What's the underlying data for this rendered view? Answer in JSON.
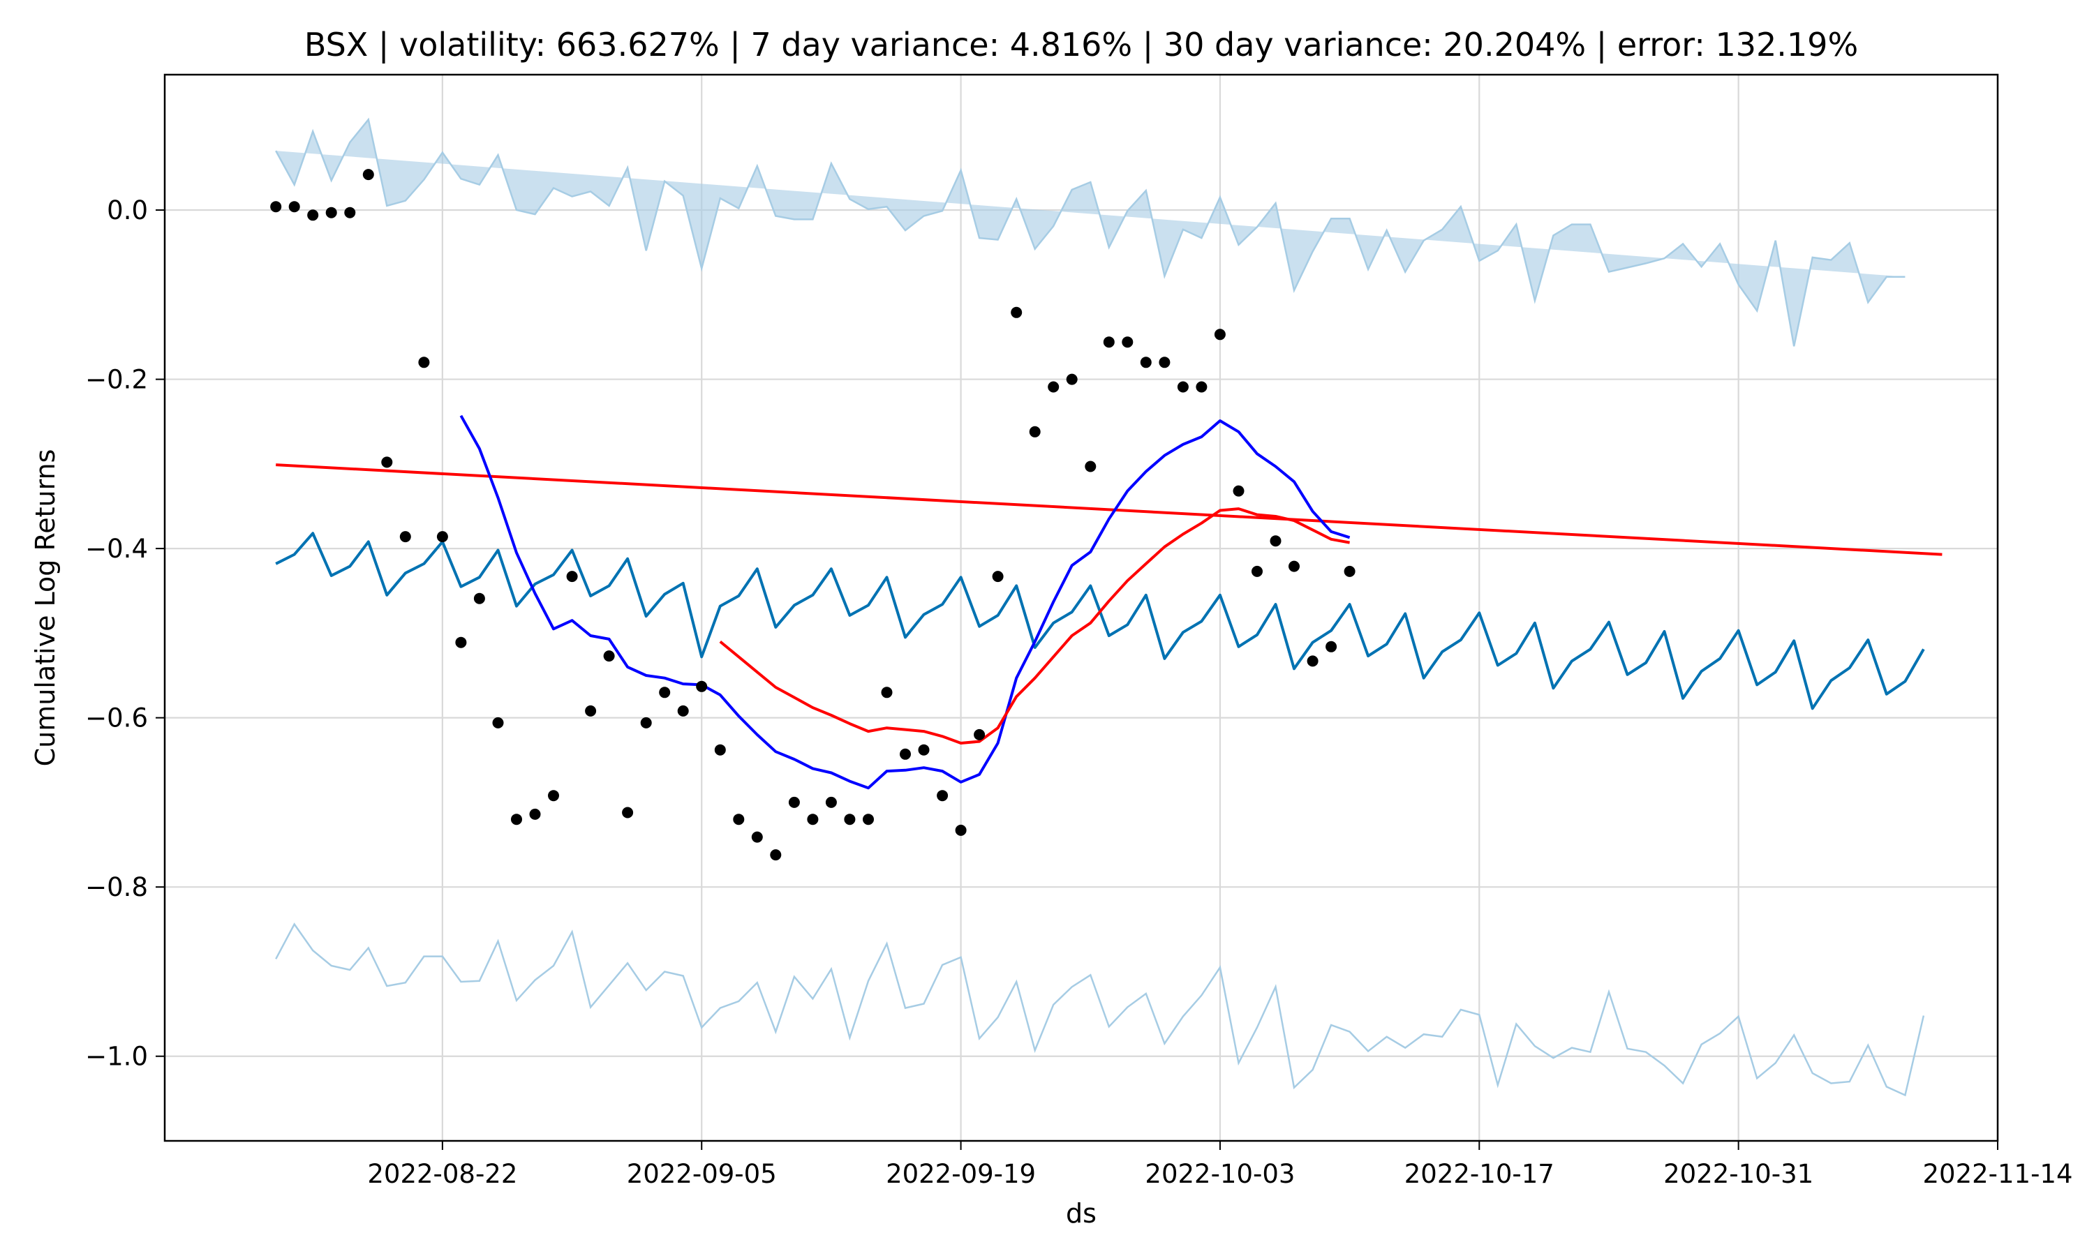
{
  "chart_data": {
    "type": "line",
    "title": "BSX | volatility: 663.627% | 7 day variance: 4.816% | 30 day variance: 20.204% | error: 132.19%",
    "xlabel": "ds",
    "ylabel": "Cumulative Log Returns",
    "x_ticks": [
      "2022-08-22",
      "2022-09-05",
      "2022-09-19",
      "2022-10-03",
      "2022-10-17",
      "2022-10-31",
      "2022-11-14"
    ],
    "y_ticks": [
      "0.0",
      "−0.2",
      "−0.4",
      "−0.6",
      "−0.8",
      "−1.0"
    ],
    "x_range": [
      "2022-08-07",
      "2022-11-14"
    ],
    "ylim": [
      -1.1,
      0.16
    ],
    "grid": true,
    "colors": {
      "forecast": "#0072B2",
      "uncertainty_band": "#A6CCE4",
      "observed_points": "#000000",
      "short_moving_average": "#0000FF",
      "long_moving_average": "#FF0000",
      "trend": "#FF0000"
    },
    "observed": {
      "dates": [
        "2022-08-13",
        "2022-08-14",
        "2022-08-15",
        "2022-08-16",
        "2022-08-17",
        "2022-08-18",
        "2022-08-19",
        "2022-08-20",
        "2022-08-21",
        "2022-08-22",
        "2022-08-23",
        "2022-08-24",
        "2022-08-25",
        "2022-08-26",
        "2022-08-27",
        "2022-08-28",
        "2022-08-29",
        "2022-08-30",
        "2022-08-31",
        "2022-09-01",
        "2022-09-02",
        "2022-09-03",
        "2022-09-04",
        "2022-09-05",
        "2022-09-06",
        "2022-09-07",
        "2022-09-08",
        "2022-09-09",
        "2022-09-10",
        "2022-09-11",
        "2022-09-12",
        "2022-09-13",
        "2022-09-14",
        "2022-09-15",
        "2022-09-16",
        "2022-09-17",
        "2022-09-18",
        "2022-09-19",
        "2022-09-20",
        "2022-09-21",
        "2022-09-22",
        "2022-09-23",
        "2022-09-24",
        "2022-09-25",
        "2022-09-26",
        "2022-09-27",
        "2022-09-28",
        "2022-09-29",
        "2022-09-30",
        "2022-10-01",
        "2022-10-02",
        "2022-10-03",
        "2022-10-04",
        "2022-10-05",
        "2022-10-06",
        "2022-10-07",
        "2022-10-08",
        "2022-10-09",
        "2022-10-10"
      ],
      "values": [
        0.004,
        0.004,
        -0.006,
        -0.003,
        -0.003,
        0.042,
        -0.298,
        -0.386,
        -0.18,
        -0.386,
        -0.511,
        -0.459,
        -0.606,
        -0.72,
        -0.714,
        -0.692,
        -0.433,
        -0.592,
        -0.527,
        -0.712,
        -0.606,
        -0.57,
        -0.592,
        -0.563,
        -0.638,
        -0.72,
        -0.741,
        -0.762,
        -0.7,
        -0.72,
        -0.7,
        -0.72,
        -0.72,
        -0.57,
        -0.643,
        -0.638,
        -0.692,
        -0.733,
        -0.62,
        -0.433,
        -0.121,
        -0.262,
        -0.209,
        -0.2,
        -0.303,
        -0.156,
        -0.156,
        -0.18,
        -0.18,
        -0.209,
        -0.209,
        -0.147,
        -0.332,
        -0.427,
        -0.391,
        -0.421,
        -0.533,
        -0.516,
        -0.427
      ]
    },
    "forecast": {
      "dates": [
        "2022-08-13",
        "2022-08-14",
        "2022-08-15",
        "2022-08-16",
        "2022-08-17",
        "2022-08-18",
        "2022-08-19",
        "2022-08-20",
        "2022-08-21",
        "2022-08-22",
        "2022-08-23",
        "2022-08-24",
        "2022-08-25",
        "2022-08-26",
        "2022-08-27",
        "2022-08-28",
        "2022-08-29",
        "2022-08-30",
        "2022-08-31",
        "2022-09-01",
        "2022-09-02",
        "2022-09-03",
        "2022-09-04",
        "2022-09-05",
        "2022-09-06",
        "2022-09-07",
        "2022-09-08",
        "2022-09-09",
        "2022-09-10",
        "2022-09-11",
        "2022-09-12",
        "2022-09-13",
        "2022-09-14",
        "2022-09-15",
        "2022-09-16",
        "2022-09-17",
        "2022-09-18",
        "2022-09-19",
        "2022-09-20",
        "2022-09-21",
        "2022-09-22",
        "2022-09-23",
        "2022-09-24",
        "2022-09-25",
        "2022-09-26",
        "2022-09-27",
        "2022-09-28",
        "2022-09-29",
        "2022-09-30",
        "2022-10-01",
        "2022-10-02",
        "2022-10-03",
        "2022-10-04",
        "2022-10-05",
        "2022-10-06",
        "2022-10-07",
        "2022-10-08",
        "2022-10-09",
        "2022-10-10",
        "2022-10-11",
        "2022-10-12",
        "2022-10-13",
        "2022-10-14",
        "2022-10-15",
        "2022-10-16",
        "2022-10-17",
        "2022-10-18",
        "2022-10-19",
        "2022-10-20",
        "2022-10-21",
        "2022-10-22",
        "2022-10-23",
        "2022-10-24",
        "2022-10-25",
        "2022-10-26",
        "2022-10-27",
        "2022-10-28",
        "2022-10-29",
        "2022-10-30",
        "2022-10-31",
        "2022-11-01",
        "2022-11-02",
        "2022-11-03",
        "2022-11-04",
        "2022-11-05",
        "2022-11-06",
        "2022-11-07",
        "2022-11-08",
        "2022-11-09",
        "2022-11-10",
        "2022-11-11"
      ],
      "yhat": [
        -0.418,
        -0.407,
        -0.382,
        -0.432,
        -0.421,
        -0.392,
        -0.455,
        -0.429,
        -0.418,
        -0.392,
        -0.445,
        -0.434,
        -0.402,
        -0.468,
        -0.442,
        -0.431,
        -0.402,
        -0.456,
        -0.444,
        -0.412,
        -0.48,
        -0.454,
        -0.441,
        -0.528,
        -0.468,
        -0.456,
        -0.424,
        -0.493,
        -0.467,
        -0.455,
        -0.424,
        -0.479,
        -0.467,
        -0.434,
        -0.505,
        -0.478,
        -0.466,
        -0.434,
        -0.492,
        -0.479,
        -0.444,
        -0.517,
        -0.488,
        -0.475,
        -0.444,
        -0.503,
        -0.49,
        -0.455,
        -0.53,
        -0.499,
        -0.486,
        -0.455,
        -0.516,
        -0.502,
        -0.466,
        -0.542,
        -0.511,
        -0.497,
        -0.466,
        -0.527,
        -0.513,
        -0.477,
        -0.553,
        -0.522,
        -0.508,
        -0.476,
        -0.538,
        -0.524,
        -0.488,
        -0.565,
        -0.533,
        -0.519,
        -0.487,
        -0.549,
        -0.535,
        -0.498,
        -0.577,
        -0.545,
        -0.53,
        -0.497,
        -0.561,
        -0.546,
        -0.509,
        -0.589,
        -0.556,
        -0.541,
        -0.508,
        -0.572,
        -0.557,
        -0.519
      ],
      "yhat_upper": [
        0.07,
        0.03,
        0.093,
        0.035,
        0.08,
        0.107,
        0.005,
        0.011,
        0.036,
        0.068,
        0.037,
        0.03,
        0.065,
        0.0,
        -0.005,
        0.026,
        0.016,
        0.022,
        0.005,
        0.05,
        -0.048,
        0.034,
        0.017,
        -0.069,
        0.014,
        0.002,
        0.052,
        -0.007,
        -0.011,
        -0.011,
        0.055,
        0.013,
        0.001,
        0.004,
        -0.024,
        -0.007,
        -0.001,
        0.047,
        -0.033,
        -0.035,
        0.013,
        -0.046,
        -0.019,
        0.024,
        0.033,
        -0.044,
        -0.001,
        0.023,
        -0.078,
        -0.023,
        -0.033,
        0.015,
        -0.041,
        -0.02,
        0.008,
        -0.095,
        -0.049,
        -0.01,
        -0.01,
        -0.07,
        -0.024,
        -0.073,
        -0.036,
        -0.023,
        0.004,
        -0.06,
        -0.048,
        -0.017,
        -0.107,
        -0.03,
        -0.017,
        -0.017,
        -0.073,
        -0.068,
        -0.063,
        -0.057,
        -0.04,
        -0.067,
        -0.04,
        -0.088,
        -0.119,
        -0.036,
        -0.161,
        -0.056,
        -0.059,
        -0.039,
        -0.109,
        -0.079,
        -0.079
      ],
      "yhat_lower": [
        -0.885,
        -0.844,
        -0.875,
        -0.893,
        -0.898,
        -0.872,
        -0.917,
        -0.913,
        -0.882,
        -0.882,
        -0.912,
        -0.911,
        -0.864,
        -0.934,
        -0.91,
        -0.893,
        -0.853,
        -0.942,
        -0.916,
        -0.89,
        -0.922,
        -0.9,
        -0.905,
        -0.966,
        -0.943,
        -0.935,
        -0.913,
        -0.971,
        -0.906,
        -0.932,
        -0.897,
        -0.978,
        -0.911,
        -0.867,
        -0.943,
        -0.938,
        -0.892,
        -0.883,
        -0.979,
        -0.954,
        -0.912,
        -0.993,
        -0.939,
        -0.918,
        -0.904,
        -0.965,
        -0.942,
        -0.926,
        -0.985,
        -0.953,
        -0.928,
        -0.895,
        -1.008,
        -0.966,
        -0.918,
        -1.037,
        -1.016,
        -0.963,
        -0.971,
        -0.994,
        -0.977,
        -0.99,
        -0.974,
        -0.977,
        -0.945,
        -0.951,
        -1.034,
        -0.962,
        -0.988,
        -1.002,
        -0.99,
        -0.995,
        -0.924,
        -0.991,
        -0.995,
        -1.011,
        -1.032,
        -0.986,
        -0.973,
        -0.953,
        -1.026,
        -1.008,
        -0.975,
        -1.02,
        -1.032,
        -1.03,
        -0.987,
        -1.036,
        -1.046,
        -0.952
      ]
    },
    "trend": {
      "dates": [
        "2022-08-13",
        "2022-11-11"
      ],
      "values": [
        -0.301,
        -0.407
      ]
    },
    "short_moving_average": {
      "dates": [
        "2022-08-23",
        "2022-08-24",
        "2022-08-25",
        "2022-08-26",
        "2022-08-27",
        "2022-08-28",
        "2022-08-29",
        "2022-08-30",
        "2022-08-31",
        "2022-09-01",
        "2022-09-02",
        "2022-09-03",
        "2022-09-04",
        "2022-09-05",
        "2022-09-06",
        "2022-09-07",
        "2022-09-08",
        "2022-09-09",
        "2022-09-10",
        "2022-09-11",
        "2022-09-12",
        "2022-09-13",
        "2022-09-14",
        "2022-09-15",
        "2022-09-16",
        "2022-09-17",
        "2022-09-18",
        "2022-09-19",
        "2022-09-20",
        "2022-09-21",
        "2022-09-22",
        "2022-09-23",
        "2022-09-24",
        "2022-09-25",
        "2022-09-26",
        "2022-09-27",
        "2022-09-28",
        "2022-09-29",
        "2022-09-30",
        "2022-10-01",
        "2022-10-02",
        "2022-10-03",
        "2022-10-04",
        "2022-10-05",
        "2022-10-06",
        "2022-10-07",
        "2022-10-08",
        "2022-10-09",
        "2022-10-10"
      ],
      "values": [
        -0.243,
        -0.282,
        -0.34,
        -0.405,
        -0.453,
        -0.495,
        -0.485,
        -0.503,
        -0.507,
        -0.54,
        -0.55,
        -0.553,
        -0.56,
        -0.561,
        -0.573,
        -0.598,
        -0.62,
        -0.64,
        -0.649,
        -0.66,
        -0.665,
        -0.675,
        -0.683,
        -0.663,
        -0.662,
        -0.659,
        -0.663,
        -0.676,
        -0.667,
        -0.63,
        -0.553,
        -0.51,
        -0.463,
        -0.42,
        -0.404,
        -0.365,
        -0.332,
        -0.309,
        -0.29,
        -0.277,
        -0.268,
        -0.249,
        -0.262,
        -0.288,
        -0.303,
        -0.321,
        -0.356,
        -0.38,
        -0.387
      ]
    },
    "long_moving_average": {
      "dates": [
        "2022-09-06",
        "2022-09-07",
        "2022-09-08",
        "2022-09-09",
        "2022-09-10",
        "2022-09-11",
        "2022-09-12",
        "2022-09-13",
        "2022-09-14",
        "2022-09-15",
        "2022-09-16",
        "2022-09-17",
        "2022-09-18",
        "2022-09-19",
        "2022-09-20",
        "2022-09-21",
        "2022-09-22",
        "2022-09-23",
        "2022-09-24",
        "2022-09-25",
        "2022-09-26",
        "2022-09-27",
        "2022-09-28",
        "2022-09-29",
        "2022-09-30",
        "2022-10-01",
        "2022-10-02",
        "2022-10-03",
        "2022-10-04",
        "2022-10-05",
        "2022-10-06",
        "2022-10-07",
        "2022-10-08",
        "2022-10-09",
        "2022-10-10"
      ],
      "values": [
        -0.51,
        -0.528,
        -0.546,
        -0.564,
        -0.576,
        -0.588,
        -0.597,
        -0.607,
        -0.616,
        -0.612,
        -0.614,
        -0.616,
        -0.622,
        -0.63,
        -0.628,
        -0.612,
        -0.575,
        -0.553,
        -0.528,
        -0.503,
        -0.488,
        -0.462,
        -0.438,
        -0.418,
        -0.398,
        -0.383,
        -0.37,
        -0.355,
        -0.353,
        -0.36,
        -0.362,
        -0.367,
        -0.378,
        -0.389,
        -0.393
      ]
    }
  }
}
